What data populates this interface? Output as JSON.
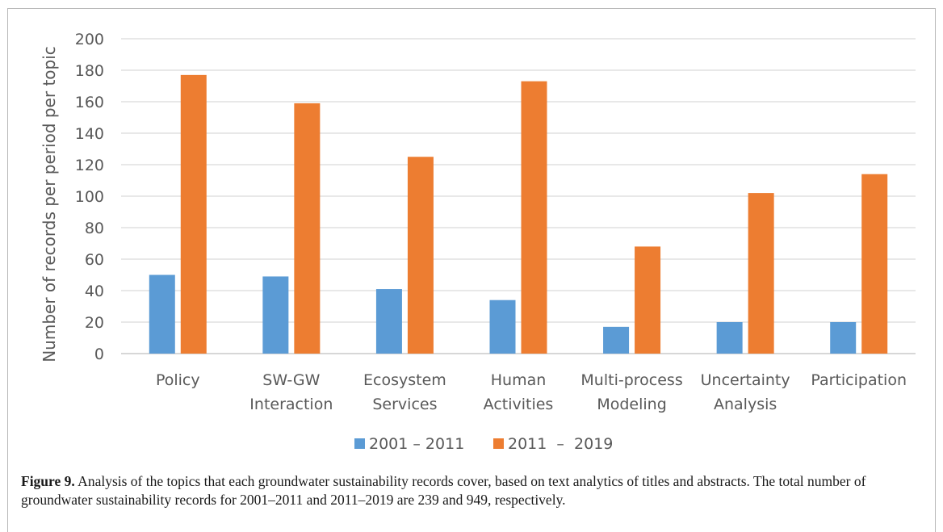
{
  "chart_data": {
    "type": "bar",
    "categories": [
      [
        "Policy"
      ],
      [
        "SW-GW",
        "Interaction"
      ],
      [
        "Ecosystem",
        "Services"
      ],
      [
        "Human",
        "Activities"
      ],
      [
        "Multi-process",
        "Modeling"
      ],
      [
        "Uncertainty",
        "Analysis"
      ],
      [
        "Participation"
      ]
    ],
    "series": [
      {
        "name": "2001 – 2011",
        "color": "#5b9bd5",
        "values": [
          50,
          49,
          41,
          34,
          17,
          20,
          20
        ]
      },
      {
        "name": "2011  –  2019",
        "color": "#ed7d31",
        "values": [
          177,
          159,
          125,
          173,
          68,
          102,
          114
        ]
      }
    ],
    "ylabel": "Number of records per period per topic",
    "xlabel": "",
    "ylim": [
      0,
      200
    ],
    "yticks": [
      0,
      20,
      40,
      60,
      80,
      100,
      120,
      140,
      160,
      180,
      200
    ],
    "grid": true,
    "legend": "bottom-center"
  },
  "caption": {
    "label": "Figure 9.",
    "text": " Analysis of the topics that each groundwater sustainability records cover, based on text analytics of titles and abstracts. The total number of groundwater sustainability records for 2001–2011 and 2011–2019 are 239 and 949, respectively."
  }
}
